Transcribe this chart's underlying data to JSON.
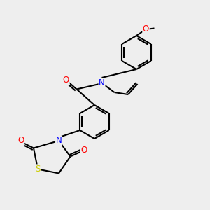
{
  "bg_color": "#eeeeee",
  "atom_colors": {
    "C": "#000000",
    "N": "#0000ff",
    "O": "#ff0000",
    "S": "#cccc00"
  },
  "bond_color": "#000000",
  "bond_width": 1.5,
  "font_size": 8.5
}
